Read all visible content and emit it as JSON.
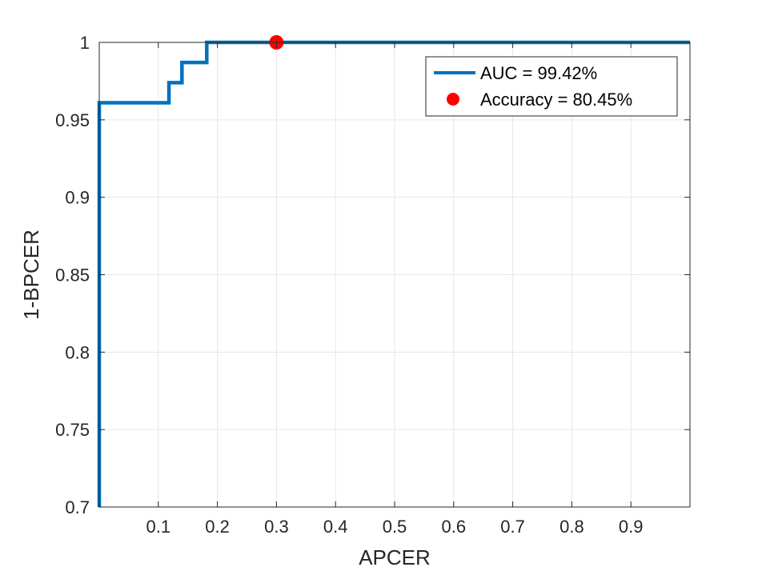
{
  "chart_data": {
    "type": "line",
    "xlabel": "APCER",
    "ylabel": "1-BPCER",
    "xlim": [
      0,
      1
    ],
    "ylim": [
      0.7,
      1
    ],
    "x_ticks": [
      0.1,
      0.2,
      0.3,
      0.4,
      0.5,
      0.6,
      0.7,
      0.8,
      0.9
    ],
    "x_tick_labels": [
      "0.1",
      "0.2",
      "0.3",
      "0.4",
      "0.5",
      "0.6",
      "0.7",
      "0.8",
      "0.9"
    ],
    "y_ticks": [
      0.7,
      0.75,
      0.8,
      0.85,
      0.9,
      0.95,
      1
    ],
    "y_tick_labels": [
      "0.7",
      "0.75",
      "0.8",
      "0.85",
      "0.9",
      "0.95",
      "1"
    ],
    "grid": true,
    "legend_position": "top-right",
    "series": [
      {
        "name": "AUC = 99.42%",
        "kind": "line",
        "color": "#0072BD",
        "points": [
          [
            0,
            0.7
          ],
          [
            0,
            0.961
          ],
          [
            0.118,
            0.961
          ],
          [
            0.118,
            0.974
          ],
          [
            0.14,
            0.974
          ],
          [
            0.14,
            0.987
          ],
          [
            0.182,
            0.987
          ],
          [
            0.182,
            1.0
          ],
          [
            1.0,
            1.0
          ]
        ]
      },
      {
        "name": "Accuracy = 80.45%",
        "kind": "marker",
        "color": "#FF0000",
        "points": [
          [
            0.3,
            1.0
          ]
        ]
      }
    ]
  }
}
